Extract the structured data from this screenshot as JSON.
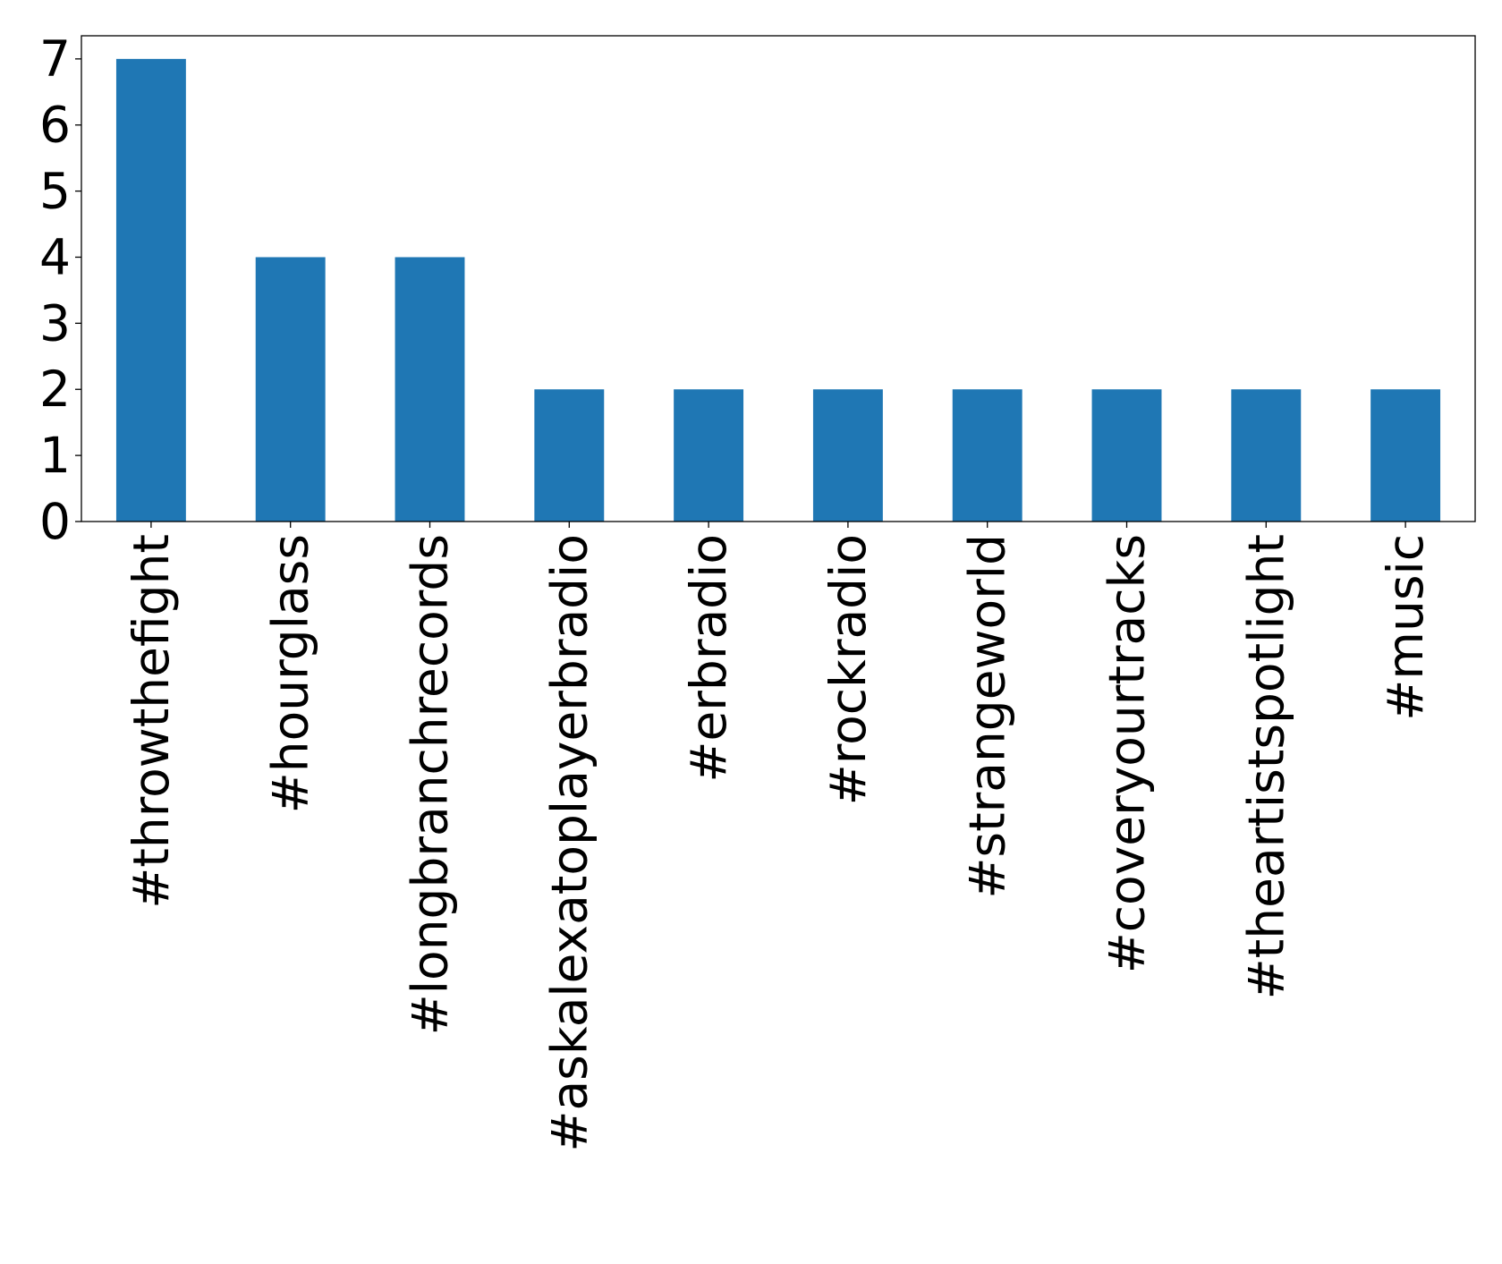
{
  "chart_data": {
    "type": "bar",
    "title": "",
    "xlabel": "",
    "ylabel": "",
    "categories": [
      "#throwthefight",
      "#hourglass",
      "#longbranchrecords",
      "#askalexatoplayerbradio",
      "#erbradio",
      "#rockradio",
      "#strangeworld",
      "#coveryourtracks",
      "#theartistspotlight",
      "#music"
    ],
    "values": [
      7,
      4,
      4,
      2,
      2,
      2,
      2,
      2,
      2,
      2
    ],
    "ylim": [
      0,
      7.35
    ],
    "yticks": [
      0,
      1,
      2,
      3,
      4,
      5,
      6,
      7
    ],
    "bar_color": "#1f77b4",
    "grid": false,
    "legend": "none"
  }
}
